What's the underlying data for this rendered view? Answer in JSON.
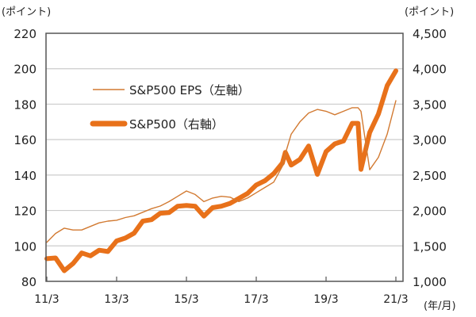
{
  "chart_data": {
    "type": "line",
    "left_unit": "(ポイント)",
    "right_unit": "(ポイント)",
    "x_unit": "(年/月)",
    "x_ticks": [
      "11/3",
      "13/3",
      "15/3",
      "17/3",
      "19/3",
      "21/3"
    ],
    "left_ylim": [
      80,
      220
    ],
    "left_ticks": [
      "80",
      "100",
      "120",
      "140",
      "160",
      "180",
      "200",
      "220"
    ],
    "right_ylim": [
      1000,
      4500
    ],
    "right_ticks": [
      "1,000",
      "1,500",
      "2,000",
      "2,500",
      "3,000",
      "3,500",
      "4,000",
      "4,500"
    ],
    "grid": true,
    "legend_placement": "top-left",
    "x": [
      "11/3",
      "11/6",
      "11/9",
      "11/12",
      "12/3",
      "12/6",
      "12/9",
      "12/12",
      "13/3",
      "13/6",
      "13/9",
      "13/12",
      "14/3",
      "14/6",
      "14/9",
      "14/12",
      "15/3",
      "15/6",
      "15/9",
      "15/12",
      "16/3",
      "16/6",
      "16/9",
      "16/12",
      "17/3",
      "17/6",
      "17/9",
      "17/12",
      "18/1",
      "18/3",
      "18/6",
      "18/9",
      "18/12",
      "19/3",
      "19/6",
      "19/9",
      "19/12",
      "20/2",
      "20/3",
      "20/6",
      "20/9",
      "20/12",
      "21/3"
    ],
    "series": [
      {
        "name": "S&P500 EPS（左軸）",
        "axis": "left",
        "color": "#D27A32",
        "values": [
          102,
          107,
          110,
          109,
          109,
          111,
          113,
          114,
          114.5,
          116,
          117,
          119,
          121,
          122.5,
          125,
          128,
          131,
          129,
          125,
          127,
          128,
          127.5,
          125,
          127,
          130,
          133,
          136,
          145,
          152,
          163,
          170,
          175,
          177,
          176,
          174,
          176,
          178,
          178,
          176,
          143,
          150,
          163,
          182
        ]
      },
      {
        "name": "S&P500（右軸）",
        "axis": "right",
        "color": "#E8711A",
        "values": [
          1320,
          1330,
          1150,
          1250,
          1400,
          1360,
          1440,
          1420,
          1570,
          1610,
          1680,
          1850,
          1870,
          1960,
          1970,
          2060,
          2070,
          2060,
          1920,
          2040,
          2060,
          2100,
          2170,
          2240,
          2360,
          2420,
          2520,
          2670,
          2820,
          2640,
          2720,
          2910,
          2510,
          2830,
          2940,
          2980,
          3230,
          3230,
          2580,
          3100,
          3360,
          3760,
          3970
        ]
      }
    ]
  }
}
